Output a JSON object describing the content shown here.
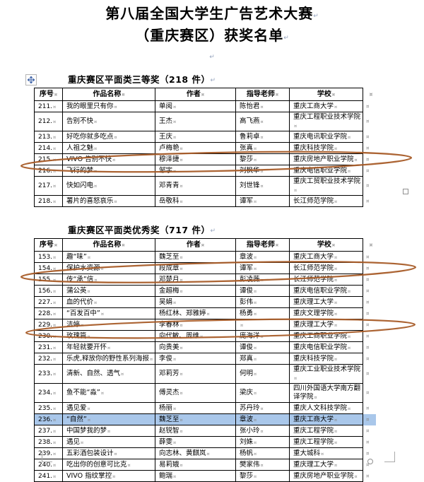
{
  "marks": {
    "paragraph": "↵",
    "cell": "¤"
  },
  "title": {
    "line1": "第八届全国大学生广告艺术大赛",
    "line2": "（重庆赛区）获奖名单"
  },
  "colors": {
    "annotation": "#a85c28",
    "highlight": "#a9c7ea",
    "handle_arrow": "#3f63a8"
  },
  "tables": [
    {
      "caption": "重庆赛区平面类三等奖（218 件）",
      "headers": [
        "序号",
        "作品名称",
        "作者",
        "指导老师",
        "学校"
      ],
      "rows": [
        [
          "211.",
          "我的眼里只有你",
          "单阅",
          "陈怡君",
          "重庆工商大学"
        ],
        [
          "212.",
          "告别不快",
          "王杰",
          "高飞燕",
          "重庆工程职业技术学院"
        ],
        [
          "213.",
          "好吃你就多吃点",
          "王庆",
          "鲁莉卓",
          "重庆电讯职业学院"
        ],
        [
          "214.",
          "人祖之魅",
          "卢梅艳",
          "张真",
          "重庆科技学院"
        ],
        [
          "215.",
          "VIVO 告别不快",
          "穆泽捷",
          "黎莎",
          "重庆房地产职业学院"
        ],
        [
          "216.",
          "飞行的梦",
          "邹宇",
          "刘枫华",
          "重庆电信职业学院"
        ],
        [
          "217.",
          "快如闪电",
          "邓青青",
          "刘世锋",
          "重庆工贸职业技术学院"
        ],
        [
          "218.",
          "薯片的喜怒哀乐",
          "岳敬科",
          "谭军",
          "长江师范学院"
        ]
      ],
      "circled_row_number": "216."
    },
    {
      "caption": "重庆赛区平面类优秀奖（717 件）",
      "headers": [
        "序号",
        "作品名称",
        "作者",
        "指导老师",
        "学校"
      ],
      "rows": [
        [
          "153.",
          "趣“味”",
          "魏芝至",
          "章波",
          "重庆工商大学"
        ],
        [
          "154.",
          "保护水资源",
          "段成章",
          "谭军",
          "长江师范学院"
        ],
        [
          "155.",
          "传“承”信",
          "邓楚月",
          "彭凌薇",
          "长江师范学院"
        ],
        [
          "156.",
          "蒲公英",
          "金超梅",
          "谭俊",
          "重庆电信职业学院"
        ],
        [
          "227.",
          "血的代价",
          "吴娟",
          "彭伟",
          "重庆理工大学"
        ],
        [
          "228.",
          "“百发百中”",
          "杨红林、郑雅婷",
          "杨勇",
          "重庆文理学院"
        ],
        [
          "229.",
          "洁婷",
          "李春林",
          "",
          "重庆理工大学"
        ],
        [
          "230.",
          "玫瑰篇",
          "向代敏、周维",
          "庞海洋",
          "重庆工商职业学院"
        ],
        [
          "231.",
          "年轻就要开怀",
          "向贵美",
          "谭俊",
          "重庆电信职业学院"
        ],
        [
          "232.",
          "乐虎,释放你的野性系列海报",
          "李俊",
          "郑真",
          "重庆科技学院"
        ],
        [
          "233.",
          "清新、自然、透气",
          "邓莉芳",
          "何明",
          "重庆工业职业技术学院"
        ],
        [
          "234.",
          "鱼不能“淼”",
          "傅灵杰",
          "梁庆",
          "四川外国语大学南方翻译学院"
        ],
        [
          "235.",
          "遇见爱",
          "杨丽",
          "苏丹玲",
          "重庆人文科技学院"
        ],
        [
          "236.",
          "“自然”",
          "魏芝至",
          "章波",
          "重庆工商大学"
        ],
        [
          "237.",
          "中国梦我的梦",
          "赵锐智",
          "张小玲",
          "重庆工程学院"
        ],
        [
          "238.",
          "遇见",
          "薛雯",
          "刘姝",
          "重庆工程学院"
        ],
        [
          "239.",
          "五彩酒包装设计",
          "向志林、黄麒岚",
          "杨帆",
          "重大城科"
        ],
        [
          "240.",
          "吃出你的创意可比克",
          "易莉娥",
          "樊家伟",
          "重庆理工大学"
        ],
        [
          "241.",
          "VIVO 指纹掌控",
          "鲍瑞",
          "黎莎",
          "重庆房地产职业学院"
        ]
      ],
      "circled_row_numbers": [
        "156.",
        "231."
      ],
      "highlighted_row_number": "236.",
      "highlighted_row_index": 13
    }
  ]
}
